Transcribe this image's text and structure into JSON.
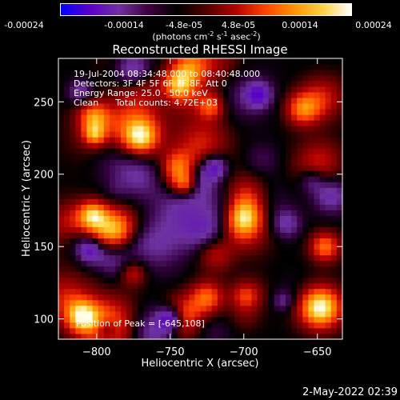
{
  "colorbar": {
    "tick_labels": [
      "-0.00024",
      "-0.00014",
      "-4.8e-05",
      "4.8e-05",
      "0.00014",
      "0.00024"
    ],
    "units_prefix": "(photons cm",
    "units_exp1": "-2",
    "units_mid1": " s",
    "units_exp2": "-1",
    "units_mid2": " asec",
    "units_exp3": "-2",
    "units_suffix": ")",
    "colors": [
      "#0000ff",
      "#5a00c8",
      "#7030a0",
      "#400040",
      "#000000",
      "#500000",
      "#b00000",
      "#ff4000",
      "#ff9000",
      "#ffd040",
      "#ffffff"
    ]
  },
  "chart_data": {
    "type": "heatmap",
    "title": "Reconstructed RHESSI Image",
    "xlabel": "Heliocentric X (arcsec)",
    "ylabel": "Heliocentric Y (arcsec)",
    "xlim": [
      -826,
      -633
    ],
    "ylim": [
      86,
      280
    ],
    "x_ticks": [
      -800,
      -750,
      -700,
      -650
    ],
    "x_tick_labels": [
      "−800",
      "−750",
      "−700",
      "−650"
    ],
    "y_ticks": [
      100,
      150,
      200,
      250
    ],
    "y_tick_labels": [
      "100",
      "150",
      "200",
      "250"
    ],
    "peak_position": [
      -645,
      108
    ],
    "value_range": [
      -0.00024,
      0.00024
    ],
    "annotations": [
      "19-Jul-2004 08:34:48.000 to 08:40:48.000",
      "Detectors: 3F 4F 5F 6F 7F 8F, Att 0",
      "Energy Range: 25.0 - 50.0 keV",
      "Clean      Total counts: 4.72E+03"
    ],
    "peak_label": "Position of Peak = [-645,108]",
    "grid": false
  },
  "timestamp": "2-May-2022 02:39"
}
